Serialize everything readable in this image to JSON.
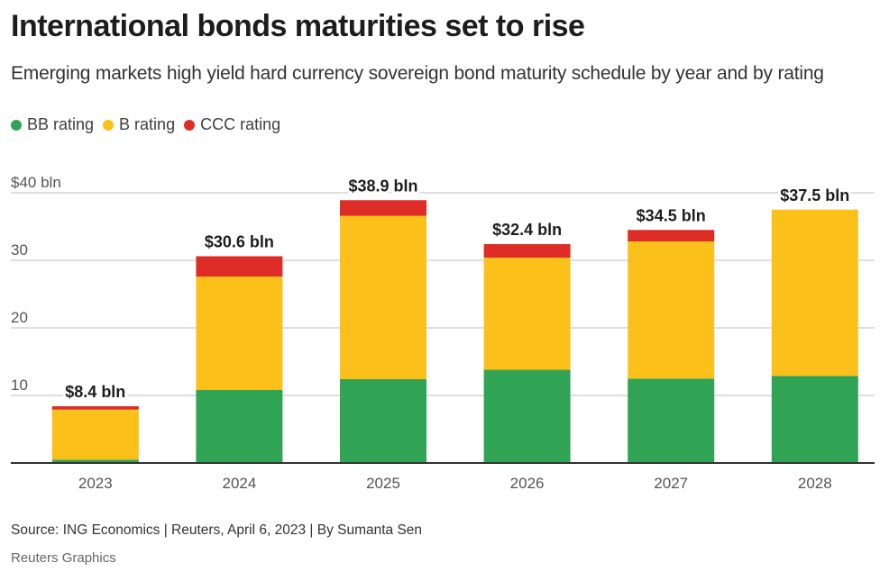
{
  "title": "International bonds maturities set to rise",
  "subtitle": "Emerging markets high yield hard currency sovereign bond maturity schedule by year and by rating",
  "legend": [
    {
      "label": "BB rating",
      "color": "#31a354"
    },
    {
      "label": "B rating",
      "color": "#fbc11a"
    },
    {
      "label": "CCC rating",
      "color": "#de2d26"
    }
  ],
  "source": "Source: ING Economics | Reuters, April 6, 2023 | By Sumanta Sen",
  "credit": "Reuters Graphics",
  "chart_data": {
    "type": "bar",
    "stacked": true,
    "title": "International bonds maturities set to rise",
    "xlabel": "",
    "ylabel": "",
    "ylim": [
      0,
      40
    ],
    "yticks": [
      10,
      20,
      30,
      40
    ],
    "ytick_labels": [
      "10",
      "20",
      "30",
      "$40 bln"
    ],
    "grid": true,
    "legend_position": "top-left",
    "categories": [
      "2023",
      "2024",
      "2025",
      "2026",
      "2027",
      "2028"
    ],
    "series": [
      {
        "name": "BB rating",
        "color": "#31a354",
        "values": [
          0.5,
          10.8,
          12.4,
          13.8,
          12.5,
          12.9
        ]
      },
      {
        "name": "B rating",
        "color": "#fbc11a",
        "values": [
          7.4,
          16.8,
          24.2,
          16.6,
          20.3,
          24.6
        ]
      },
      {
        "name": "CCC rating",
        "color": "#de2d26",
        "values": [
          0.5,
          3.0,
          2.3,
          2.0,
          1.7,
          0.0
        ]
      }
    ],
    "totals": [
      8.4,
      30.6,
      38.9,
      32.4,
      34.5,
      37.5
    ],
    "total_labels": [
      "$8.4 bln",
      "$30.6 bln",
      "$38.9 bln",
      "$32.4 bln",
      "$34.5 bln",
      "$37.5 bln"
    ]
  }
}
